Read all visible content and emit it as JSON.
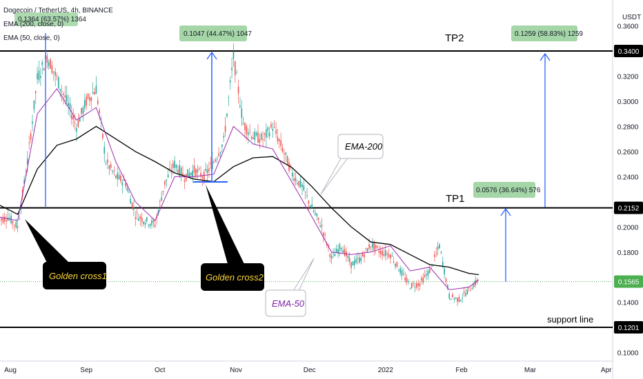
{
  "chart_data": {
    "type": "line",
    "title": "Dogecoin / TetherUS, 4h, BINANCE",
    "indicators": [
      "EMA (200, close, 0)",
      "EMA (50, close, 0)"
    ],
    "currency": "USDT",
    "x_ticks": [
      "Aug",
      "Sep",
      "Oct",
      "Nov",
      "Dec",
      "2022",
      "Feb",
      "Mar",
      "Apr"
    ],
    "y_ticks": [
      "0.3600",
      "0.3400",
      "0.3200",
      "0.3000",
      "0.2800",
      "0.2600",
      "0.2400",
      "0.2152",
      "0.2000",
      "0.1800",
      "0.1565",
      "0.1400",
      "0.1201",
      "0.1000"
    ],
    "ylim": [
      0.1,
      0.36
    ],
    "grid": false,
    "price_series": {
      "name": "Dogecoin / TetherUS",
      "x": [
        "2021-07-27",
        "2021-07-31",
        "2021-08-04",
        "2021-08-08",
        "2021-08-12",
        "2021-08-16",
        "2021-08-20",
        "2021-08-24",
        "2021-08-28",
        "2021-09-01",
        "2021-09-05",
        "2021-09-09",
        "2021-09-13",
        "2021-09-17",
        "2021-09-21",
        "2021-09-25",
        "2021-09-29",
        "2021-10-03",
        "2021-10-07",
        "2021-10-11",
        "2021-10-15",
        "2021-10-19",
        "2021-10-23",
        "2021-10-27",
        "2021-10-31",
        "2021-11-04",
        "2021-11-08",
        "2021-11-12",
        "2021-11-16",
        "2021-11-20",
        "2021-11-24",
        "2021-11-28",
        "2021-12-02",
        "2021-12-06",
        "2021-12-10",
        "2021-12-14",
        "2021-12-18",
        "2021-12-22",
        "2021-12-26",
        "2021-12-30",
        "2022-01-03",
        "2022-01-07",
        "2022-01-11",
        "2022-01-15",
        "2022-01-19",
        "2022-01-23",
        "2022-01-27",
        "2022-01-31",
        "2022-02-04",
        "2022-02-08"
      ],
      "values": [
        0.205,
        0.208,
        0.2,
        0.252,
        0.318,
        0.336,
        0.318,
        0.3,
        0.28,
        0.3,
        0.31,
        0.252,
        0.24,
        0.235,
        0.21,
        0.205,
        0.202,
        0.235,
        0.25,
        0.24,
        0.245,
        0.24,
        0.252,
        0.268,
        0.335,
        0.282,
        0.272,
        0.27,
        0.28,
        0.262,
        0.242,
        0.232,
        0.215,
        0.2,
        0.175,
        0.185,
        0.17,
        0.175,
        0.186,
        0.18,
        0.178,
        0.165,
        0.153,
        0.155,
        0.165,
        0.185,
        0.145,
        0.142,
        0.15,
        0.158
      ]
    },
    "series": [
      {
        "name": "EMA (200, close, 0)",
        "color": "#000000",
        "x": [
          "2021-07-27",
          "2021-08-04",
          "2021-08-12",
          "2021-08-20",
          "2021-08-28",
          "2021-09-05",
          "2021-09-13",
          "2021-09-21",
          "2021-09-29",
          "2021-10-07",
          "2021-10-15",
          "2021-10-23",
          "2021-10-31",
          "2021-11-08",
          "2021-11-16",
          "2021-11-24",
          "2021-12-02",
          "2021-12-10",
          "2021-12-18",
          "2021-12-26",
          "2022-01-03",
          "2022-01-11",
          "2022-01-19",
          "2022-01-27",
          "2022-02-04",
          "2022-02-08"
        ],
        "values": [
          0.218,
          0.21,
          0.246,
          0.265,
          0.27,
          0.28,
          0.27,
          0.26,
          0.252,
          0.243,
          0.238,
          0.236,
          0.248,
          0.255,
          0.256,
          0.247,
          0.232,
          0.215,
          0.2,
          0.188,
          0.186,
          0.178,
          0.17,
          0.168,
          0.163,
          0.162
        ]
      },
      {
        "name": "EMA (50, close, 0)",
        "color": "#9c27b0",
        "x": [
          "2021-07-27",
          "2021-08-04",
          "2021-08-12",
          "2021-08-20",
          "2021-08-28",
          "2021-09-05",
          "2021-09-13",
          "2021-09-21",
          "2021-09-29",
          "2021-10-07",
          "2021-10-15",
          "2021-10-23",
          "2021-10-31",
          "2021-11-08",
          "2021-11-16",
          "2021-11-24",
          "2021-12-02",
          "2021-12-10",
          "2021-12-18",
          "2021-12-26",
          "2022-01-03",
          "2022-01-11",
          "2022-01-19",
          "2022-01-27",
          "2022-02-04",
          "2022-02-08"
        ],
        "values": [
          0.208,
          0.205,
          0.29,
          0.31,
          0.285,
          0.295,
          0.252,
          0.22,
          0.205,
          0.24,
          0.24,
          0.242,
          0.28,
          0.266,
          0.262,
          0.235,
          0.208,
          0.18,
          0.178,
          0.18,
          0.185,
          0.165,
          0.168,
          0.15,
          0.152,
          0.158
        ]
      }
    ],
    "levels": [
      {
        "label": "TP2",
        "value": 0.34,
        "value_label": "0.3400"
      },
      {
        "label": "TP1",
        "value": 0.2152,
        "value_label": "0.2152"
      },
      {
        "label": "support line",
        "value": 0.1201,
        "value_label": "0.1201"
      }
    ],
    "current_price": {
      "value": 0.1565,
      "value_label": "0.1565",
      "color": "#4caf50"
    },
    "measure_labels": [
      "0.1364 (63.57%) 1364",
      "0.1047 (44.47%) 1047",
      "0.1259 (58.83%) 1259",
      "0.0576 (36.64%) 576"
    ],
    "annotations": [
      "Golden cross1",
      "Golden cross2",
      "EMA-200",
      "EMA-50"
    ]
  }
}
